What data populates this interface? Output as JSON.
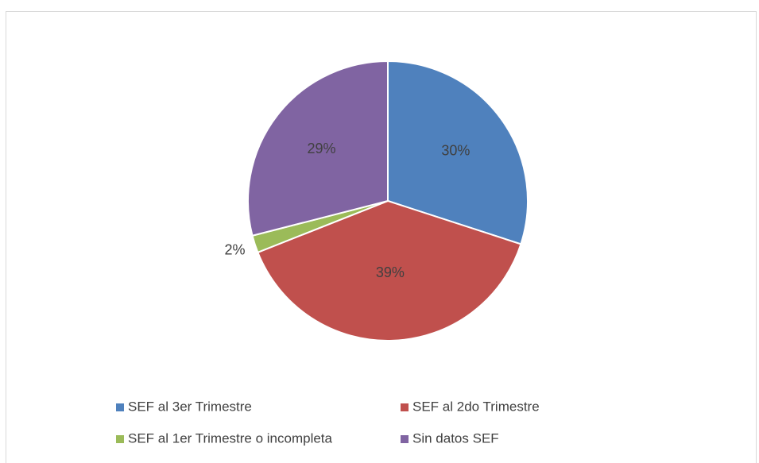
{
  "chart_data": {
    "type": "pie",
    "categories": [
      "SEF al 3er Trimestre",
      "SEF al 2do Trimestre",
      "SEF al 1er Trimestre o incompleta",
      "Sin datos SEF"
    ],
    "values": [
      30,
      39,
      2,
      29
    ],
    "value_labels": [
      "30%",
      "39%",
      "2%",
      "29%"
    ],
    "colors": [
      "#4f81bd",
      "#c0504d",
      "#9bbb59",
      "#8064a2"
    ],
    "legend": "bottom"
  }
}
